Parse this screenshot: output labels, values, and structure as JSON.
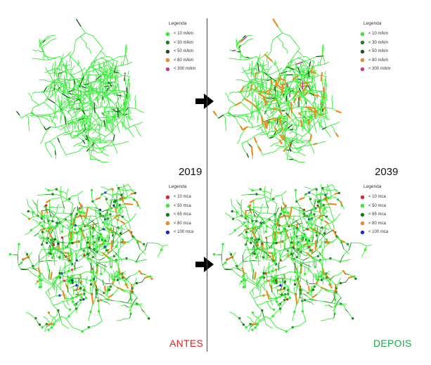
{
  "panels": {
    "top_left": {
      "label": "2019",
      "legend": {
        "title": "Legenda",
        "items": [
          {
            "label": "< 10 m/km",
            "color": "#33ee33"
          },
          {
            "label": "< 30 m/km",
            "color": "#1e7a1e"
          },
          {
            "label": "< 50 m/km",
            "color": "#145214"
          },
          {
            "label": "< 80 m/km",
            "color": "#f08a1e"
          },
          {
            "label": "< 300 m/km",
            "color": "#c0399a"
          }
        ]
      }
    },
    "top_right": {
      "label": "2039",
      "legend": {
        "title": "Legenda",
        "items": [
          {
            "label": "< 10 m/km",
            "color": "#33ee33"
          },
          {
            "label": "< 30 m/km",
            "color": "#1e7a1e"
          },
          {
            "label": "< 50 m/km",
            "color": "#145214"
          },
          {
            "label": "< 80 m/km",
            "color": "#f08a1e"
          },
          {
            "label": "< 300 m/km",
            "color": "#c0399a"
          }
        ]
      }
    },
    "bottom_left": {
      "label": "ANTES",
      "label_color": "#e02020",
      "legend": {
        "title": "Legenda",
        "items": [
          {
            "label": "< 10 mca",
            "color": "#dd2222"
          },
          {
            "label": "< 50 mca",
            "color": "#33ee33"
          },
          {
            "label": "< 65 mca",
            "color": "#167a16"
          },
          {
            "label": "< 80 mca",
            "color": "#f08a1e"
          },
          {
            "label": "< 100 mca",
            "color": "#1a22cc"
          }
        ]
      }
    },
    "bottom_right": {
      "label": "DEPOIS",
      "label_color": "#1aa84a",
      "legend": {
        "title": "Legenda",
        "items": [
          {
            "label": "< 10 mca",
            "color": "#dd2222"
          },
          {
            "label": "< 50 mca",
            "color": "#33ee33"
          },
          {
            "label": "< 65 mca",
            "color": "#167a16"
          },
          {
            "label": "< 80 mca",
            "color": "#f08a1e"
          },
          {
            "label": "< 100 mca",
            "color": "#1a22cc"
          }
        ]
      }
    }
  },
  "arrows": {
    "color": "#000000",
    "icon": "right-arrow-icon"
  },
  "network_colors": {
    "main": "#33ee33",
    "dark": "#145214",
    "mid": "#1e7a1e",
    "orange": "#f08a1e",
    "blue": "#1a22cc",
    "red": "#dd2222",
    "magenta": "#c0399a"
  }
}
